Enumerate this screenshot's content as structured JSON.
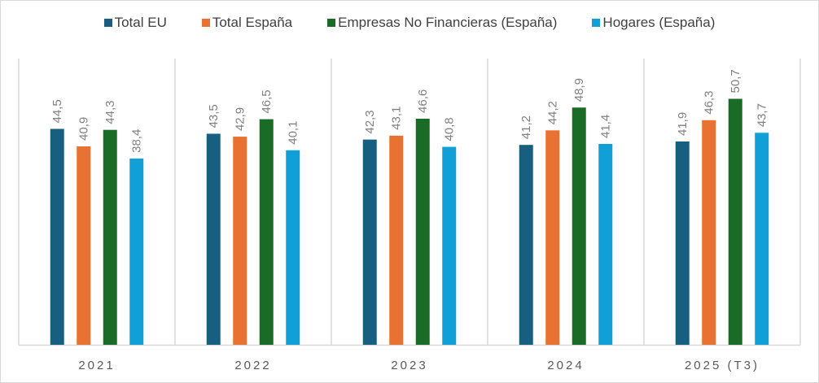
{
  "chart_data": {
    "type": "bar",
    "title": "",
    "xlabel": "",
    "ylabel": "",
    "ylim": [
      0,
      59
    ],
    "grid": false,
    "legend_position": "top",
    "categories": [
      "2021",
      "2022",
      "2023",
      "2024",
      "2025 (T3)"
    ],
    "series": [
      {
        "name": "Total EU",
        "color": "#175e81",
        "values": [
          44.5,
          43.5,
          42.3,
          41.2,
          41.9
        ],
        "labels": [
          "44,5",
          "43,5",
          "42,3",
          "41,2",
          "41,9"
        ]
      },
      {
        "name": "Total España",
        "color": "#e97132",
        "values": [
          40.9,
          42.9,
          43.1,
          44.2,
          46.3
        ],
        "labels": [
          "40,9",
          "42,9",
          "43,1",
          "44,2",
          "46,3"
        ]
      },
      {
        "name": "Empresas No Financieras (España)",
        "color": "#1a6b26",
        "values": [
          44.3,
          46.5,
          46.6,
          48.9,
          50.7
        ],
        "labels": [
          "44,3",
          "46,5",
          "46,6",
          "48,9",
          "50,7"
        ]
      },
      {
        "name": "Hogares (España)",
        "color": "#119fd8",
        "values": [
          38.4,
          40.1,
          40.8,
          41.4,
          43.7
        ],
        "labels": [
          "38,4",
          "40,1",
          "40,8",
          "41,4",
          "43,7"
        ]
      }
    ]
  }
}
